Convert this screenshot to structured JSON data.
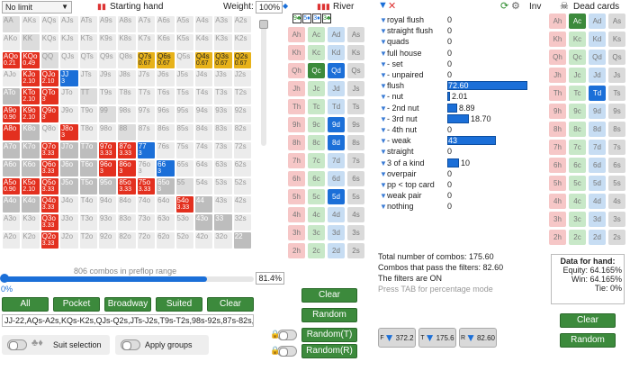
{
  "toolbar": {
    "limit": "No limit",
    "starting_hand": "Starting hand",
    "weight_label": "Weight:",
    "weight_value": "100%",
    "river": "River",
    "inv": "Inv",
    "dead_cards": "Dead cards"
  },
  "matrix": [
    [
      [
        "AA",
        ""
      ],
      [
        "AKs",
        ""
      ],
      [
        "AQs",
        ""
      ],
      [
        "AJs",
        ""
      ],
      [
        "ATs",
        ""
      ],
      [
        "A9s",
        ""
      ],
      [
        "A8s",
        ""
      ],
      [
        "A7s",
        ""
      ],
      [
        "A6s",
        ""
      ],
      [
        "A5s",
        ""
      ],
      [
        "A4s",
        ""
      ],
      [
        "A3s",
        ""
      ],
      [
        "A2s",
        ""
      ]
    ],
    [
      [
        "AKo",
        ""
      ],
      [
        "KK",
        ""
      ],
      [
        "KQs",
        ""
      ],
      [
        "KJs",
        ""
      ],
      [
        "KTs",
        ""
      ],
      [
        "K9s",
        ""
      ],
      [
        "K8s",
        ""
      ],
      [
        "K7s",
        ""
      ],
      [
        "K6s",
        ""
      ],
      [
        "K5s",
        ""
      ],
      [
        "K4s",
        ""
      ],
      [
        "K3s",
        ""
      ],
      [
        "K2s",
        ""
      ]
    ],
    [
      [
        "AQo",
        "0.21"
      ],
      [
        "KQo",
        "0.49"
      ],
      [
        "QQ",
        ""
      ],
      [
        "QJs",
        ""
      ],
      [
        "QTs",
        ""
      ],
      [
        "Q9s",
        ""
      ],
      [
        "Q8s",
        ""
      ],
      [
        "Q7s",
        "0.67"
      ],
      [
        "Q6s",
        "0.67"
      ],
      [
        "Q5s",
        ""
      ],
      [
        "Q4s",
        "0.67"
      ],
      [
        "Q3s",
        "0.67"
      ],
      [
        "Q2s",
        "0.67"
      ]
    ],
    [
      [
        "AJo",
        ""
      ],
      [
        "KJo",
        "2.10"
      ],
      [
        "QJo",
        "2.10"
      ],
      [
        "JJ",
        "3"
      ],
      [
        "JTs",
        ""
      ],
      [
        "J9s",
        ""
      ],
      [
        "J8s",
        ""
      ],
      [
        "J7s",
        ""
      ],
      [
        "J6s",
        ""
      ],
      [
        "J5s",
        ""
      ],
      [
        "J4s",
        ""
      ],
      [
        "J3s",
        ""
      ],
      [
        "J2s",
        ""
      ]
    ],
    [
      [
        "ATo",
        ""
      ],
      [
        "KTo",
        "2.10"
      ],
      [
        "QTo",
        "3"
      ],
      [
        "JTo",
        ""
      ],
      [
        "TT",
        ""
      ],
      [
        "T9s",
        ""
      ],
      [
        "T8s",
        ""
      ],
      [
        "T7s",
        ""
      ],
      [
        "T6s",
        ""
      ],
      [
        "T5s",
        ""
      ],
      [
        "T4s",
        ""
      ],
      [
        "T3s",
        ""
      ],
      [
        "T2s",
        ""
      ]
    ],
    [
      [
        "A9o",
        "0.90"
      ],
      [
        "K9o",
        "2.10"
      ],
      [
        "Q9o",
        "3"
      ],
      [
        "J9o",
        ""
      ],
      [
        "T9o",
        ""
      ],
      [
        "99",
        ""
      ],
      [
        "98s",
        ""
      ],
      [
        "97s",
        ""
      ],
      [
        "96s",
        ""
      ],
      [
        "95s",
        ""
      ],
      [
        "94s",
        ""
      ],
      [
        "93s",
        ""
      ],
      [
        "92s",
        ""
      ]
    ],
    [
      [
        "A8o",
        ""
      ],
      [
        "K8o",
        ""
      ],
      [
        "Q8o",
        ""
      ],
      [
        "J8o",
        "3"
      ],
      [
        "T8o",
        ""
      ],
      [
        "98o",
        ""
      ],
      [
        "88",
        ""
      ],
      [
        "87s",
        ""
      ],
      [
        "86s",
        ""
      ],
      [
        "85s",
        ""
      ],
      [
        "84s",
        ""
      ],
      [
        "83s",
        ""
      ],
      [
        "82s",
        ""
      ]
    ],
    [
      [
        "A7o",
        ""
      ],
      [
        "K7o",
        ""
      ],
      [
        "Q7o",
        "3.33"
      ],
      [
        "J7o",
        ""
      ],
      [
        "T7o",
        ""
      ],
      [
        "97o",
        "3.33"
      ],
      [
        "87o",
        "3.33"
      ],
      [
        "77",
        "3"
      ],
      [
        "76s",
        ""
      ],
      [
        "75s",
        ""
      ],
      [
        "74s",
        ""
      ],
      [
        "73s",
        ""
      ],
      [
        "72s",
        ""
      ]
    ],
    [
      [
        "A6o",
        ""
      ],
      [
        "K6o",
        ""
      ],
      [
        "Q6o",
        "3.33"
      ],
      [
        "J6o",
        ""
      ],
      [
        "T6o",
        ""
      ],
      [
        "96o",
        "3"
      ],
      [
        "86o",
        "3"
      ],
      [
        "76o",
        "3"
      ],
      [
        "66",
        "3"
      ],
      [
        "65s",
        ""
      ],
      [
        "64s",
        ""
      ],
      [
        "63s",
        ""
      ],
      [
        "62s",
        ""
      ]
    ],
    [
      [
        "A5o",
        "0.90"
      ],
      [
        "K5o",
        "2.10"
      ],
      [
        "Q5o",
        "3.33"
      ],
      [
        "J5o",
        ""
      ],
      [
        "T5o",
        ""
      ],
      [
        "95o",
        ""
      ],
      [
        "85o",
        "3.33"
      ],
      [
        "75o",
        "3.33"
      ],
      [
        "65o",
        "3"
      ],
      [
        "55",
        ""
      ],
      [
        "54s",
        ""
      ],
      [
        "53s",
        ""
      ],
      [
        "52s",
        ""
      ]
    ],
    [
      [
        "A4o",
        ""
      ],
      [
        "K4o",
        ""
      ],
      [
        "Q4o",
        "3.33"
      ],
      [
        "J4o",
        ""
      ],
      [
        "T4o",
        ""
      ],
      [
        "94o",
        ""
      ],
      [
        "84o",
        ""
      ],
      [
        "74o",
        ""
      ],
      [
        "64o",
        ""
      ],
      [
        "54o",
        "3.33"
      ],
      [
        "44",
        ""
      ],
      [
        "43s",
        ""
      ],
      [
        "42s",
        ""
      ]
    ],
    [
      [
        "A3o",
        ""
      ],
      [
        "K3o",
        ""
      ],
      [
        "Q3o",
        "3.33"
      ],
      [
        "J3o",
        ""
      ],
      [
        "T3o",
        ""
      ],
      [
        "93o",
        ""
      ],
      [
        "83o",
        ""
      ],
      [
        "73o",
        ""
      ],
      [
        "63o",
        ""
      ],
      [
        "53o",
        ""
      ],
      [
        "43o",
        ""
      ],
      [
        "33",
        ""
      ],
      [
        "32s",
        ""
      ]
    ],
    [
      [
        "A2o",
        ""
      ],
      [
        "K2o",
        ""
      ],
      [
        "Q2o",
        "3.33"
      ],
      [
        "J2o",
        ""
      ],
      [
        "T2o",
        ""
      ],
      [
        "92o",
        ""
      ],
      [
        "82o",
        ""
      ],
      [
        "72o",
        ""
      ],
      [
        "62o",
        ""
      ],
      [
        "52o",
        ""
      ],
      [
        "42o",
        ""
      ],
      [
        "32o",
        ""
      ],
      [
        "22",
        ""
      ]
    ]
  ],
  "matrix_colors": {
    "red": [
      "AQo",
      "KQo",
      "KJo",
      "QJo",
      "KTo",
      "A9o",
      "K9o",
      "J8o",
      "Q7o",
      "97o",
      "87o",
      "Q6o",
      "96o",
      "86o",
      "A5o",
      "K5o",
      "Q5o",
      "85o",
      "75o",
      "Q4o",
      "54o",
      "Q3o",
      "Q2o",
      "QTo",
      "Q9o",
      "A8o"
    ],
    "yellow": [
      "Q7s",
      "Q6s",
      "Q4s",
      "Q3s",
      "Q2s"
    ],
    "blue": [
      "JJ",
      "77",
      "66"
    ],
    "gray": [
      "ATo",
      "K6o",
      "A7o",
      "J7o",
      "T7o",
      "A6o",
      "65o",
      "44",
      "33",
      "22",
      "43o",
      "J5o",
      "T5o",
      "95o",
      "K8o",
      "K7o",
      "A4o",
      "K4o",
      "T6o",
      "J6o"
    ]
  },
  "range": {
    "combos_label": "806 combos in preflop range",
    "min": "0%",
    "max": "81.4%",
    "progress": 0.814
  },
  "range_buttons": [
    "All",
    "Pocket",
    "Broadway",
    "Suited",
    "Clear"
  ],
  "range_text": "JJ-22,AQs-A2s,KQs-K2s,QJs-Q2s,JTs-J2s,T9s-T2s,98s-92s,87s-82s,7",
  "suit_selection": "Suit selection",
  "apply_groups": "Apply groups",
  "board": {
    "header_cards": [
      "9♣",
      "5♦",
      "3♦",
      "3♣"
    ],
    "ranks": [
      "A",
      "K",
      "Q",
      "J",
      "T",
      "9",
      "8",
      "7",
      "6",
      "5",
      "4",
      "3",
      "2"
    ],
    "selected": {
      "Qc": "Qc",
      "Qd": "Qd",
      "9d": "9d",
      "8d": "8d",
      "5d": "5d"
    },
    "buttons": [
      "Clear",
      "Random",
      "Random(T)",
      "Random(R)"
    ]
  },
  "filters": [
    {
      "label": "royal flush",
      "value": "0"
    },
    {
      "label": "straight flush",
      "value": "0"
    },
    {
      "label": "quads",
      "value": "0"
    },
    {
      "label": "full house",
      "value": "0"
    },
    {
      "label": "- set",
      "value": "0"
    },
    {
      "label": "- unpaired",
      "value": "0"
    },
    {
      "label": "flush",
      "value": "72.60",
      "bar": 0.97
    },
    {
      "label": "- nut",
      "value": "2.01",
      "bar": 0.03
    },
    {
      "label": "- 2nd nut",
      "value": "8.89",
      "bar": 0.12
    },
    {
      "label": "- 3rd nut",
      "value": "18.70",
      "bar": 0.26
    },
    {
      "label": "- 4th nut",
      "value": "0"
    },
    {
      "label": "- weak",
      "value": "43",
      "bar": 0.59
    },
    {
      "label": "straight",
      "value": "0"
    },
    {
      "label": "3 of a kind",
      "value": "10",
      "bar": 0.14
    },
    {
      "label": "overpair",
      "value": "0"
    },
    {
      "label": "pp < top card",
      "value": "0"
    },
    {
      "label": "weak pair",
      "value": "0"
    },
    {
      "label": "nothing",
      "value": "0"
    }
  ],
  "stats": {
    "total": "Total number of combos: 175.60",
    "pass": "Combos that pass the filters: 82.60",
    "filters_on": "The filters are ON",
    "hint": "Press TAB for percentage mode"
  },
  "funnel": [
    {
      "label": "F",
      "value": "372.2"
    },
    {
      "label": "T",
      "value": "175.6"
    },
    {
      "label": "R",
      "value": "82.60"
    }
  ],
  "dead": {
    "selected": {
      "Ac": "Ac",
      "Td": "Td"
    },
    "buttons": [
      "Clear",
      "Random"
    ]
  },
  "hand_data": {
    "title": "Data for hand:",
    "equity": "Equity: 64.165%",
    "win": "Win: 64.165%",
    "tie": "Tie: 0%"
  },
  "colors": {
    "green": "#3c8a3c",
    "blue": "#1b6fd8",
    "red": "#e3301f",
    "yellow": "#e7b21a"
  }
}
